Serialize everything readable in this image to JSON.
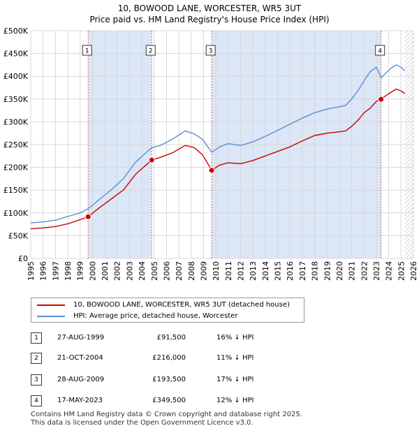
{
  "title_line1": "10, BOWOOD LANE, WORCESTER, WR5 3UT",
  "title_line2": "Price paid vs. HM Land Registry's House Price Index (HPI)",
  "legend": {
    "property_label": "10, BOWOOD LANE, WORCESTER, WR5 3UT (detached house)",
    "hpi_label": "HPI: Average price, detached house, Worcester"
  },
  "colors": {
    "property": "#cc0000",
    "hpi": "#5b8fd6",
    "shade": "#dbe6f6",
    "grid": "#d8d8d8",
    "vline": "#e06060"
  },
  "transactions": [
    {
      "num": "1",
      "date": "27-AUG-1999",
      "price": "£91,500",
      "diff": "16% ↓ HPI"
    },
    {
      "num": "2",
      "date": "21-OCT-2004",
      "price": "£216,000",
      "diff": "11% ↓ HPI"
    },
    {
      "num": "3",
      "date": "28-AUG-2009",
      "price": "£193,500",
      "diff": "17% ↓ HPI"
    },
    {
      "num": "4",
      "date": "17-MAY-2023",
      "price": "£349,500",
      "diff": "12% ↓ HPI"
    }
  ],
  "footer": {
    "line1": "Contains HM Land Registry data © Crown copyright and database right 2025.",
    "line2": "This data is licensed under the Open Government Licence v3.0."
  },
  "chart_data": {
    "type": "line",
    "title": "10, BOWOOD LANE, WORCESTER, WR5 3UT",
    "subtitle": "Price paid vs. HM Land Registry's House Price Index (HPI)",
    "xlabel": "",
    "ylabel": "",
    "xlim": [
      1995,
      2026
    ],
    "ylim": [
      0,
      500000
    ],
    "x_ticks": [
      1995,
      1996,
      1997,
      1998,
      1999,
      2000,
      2001,
      2002,
      2003,
      2004,
      2005,
      2006,
      2007,
      2008,
      2009,
      2010,
      2011,
      2012,
      2013,
      2014,
      2015,
      2016,
      2017,
      2018,
      2019,
      2020,
      2021,
      2022,
      2023,
      2024,
      2025,
      2026
    ],
    "y_ticks": [
      {
        "value": 0,
        "label": "£0"
      },
      {
        "value": 50000,
        "label": "£50K"
      },
      {
        "value": 100000,
        "label": "£100K"
      },
      {
        "value": 150000,
        "label": "£150K"
      },
      {
        "value": 200000,
        "label": "£200K"
      },
      {
        "value": 250000,
        "label": "£250K"
      },
      {
        "value": 300000,
        "label": "£300K"
      },
      {
        "value": 350000,
        "label": "£350K"
      },
      {
        "value": 400000,
        "label": "£400K"
      },
      {
        "value": 450000,
        "label": "£450K"
      },
      {
        "value": 500000,
        "label": "£500K"
      }
    ],
    "grid": true,
    "future_hatch_from": 2025.3,
    "shaded_periods": [
      [
        1999.65,
        2004.8
      ],
      [
        2009.66,
        2023.38
      ]
    ],
    "sales": [
      {
        "num": "1",
        "x": 1999.65,
        "y": 91500
      },
      {
        "num": "2",
        "x": 2004.8,
        "y": 216000
      },
      {
        "num": "3",
        "x": 2009.66,
        "y": 193500
      },
      {
        "num": "4",
        "x": 2023.38,
        "y": 349500
      }
    ],
    "series": [
      {
        "name": "10, BOWOOD LANE, WORCESTER, WR5 3UT (detached house)",
        "x": [
          1995.0,
          1996.0,
          1997.0,
          1998.0,
          1999.0,
          1999.65,
          2000.5,
          2001.5,
          2002.5,
          2003.5,
          2004.8,
          2005.5,
          2006.5,
          2007.5,
          2008.2,
          2008.9,
          2009.66,
          2010.3,
          2011.0,
          2012.0,
          2013.0,
          2014.0,
          2015.0,
          2016.0,
          2017.0,
          2018.0,
          2019.0,
          2020.0,
          2020.5,
          2021.0,
          2021.5,
          2022.0,
          2022.5,
          2023.0,
          2023.38,
          2023.8,
          2024.2,
          2024.6,
          2025.0,
          2025.3
        ],
        "y": [
          65000,
          67000,
          70000,
          76000,
          85000,
          91500,
          110000,
          130000,
          150000,
          185000,
          216000,
          222000,
          232000,
          248000,
          244000,
          228000,
          193500,
          205000,
          210000,
          208000,
          215000,
          225000,
          235000,
          245000,
          258000,
          270000,
          275000,
          278000,
          280000,
          290000,
          303000,
          320000,
          330000,
          345000,
          349500,
          358000,
          365000,
          372000,
          368000,
          362000
        ]
      },
      {
        "name": "HPI: Average price, detached house, Worcester",
        "x": [
          1995.0,
          1996.0,
          1997.0,
          1998.0,
          1999.0,
          1999.65,
          2000.5,
          2001.5,
          2002.5,
          2003.5,
          2004.8,
          2005.5,
          2006.5,
          2007.5,
          2008.2,
          2008.9,
          2009.66,
          2010.3,
          2011.0,
          2012.0,
          2013.0,
          2014.0,
          2015.0,
          2016.0,
          2017.0,
          2018.0,
          2019.0,
          2020.0,
          2020.5,
          2021.0,
          2021.5,
          2022.0,
          2022.5,
          2023.0,
          2023.38,
          2023.8,
          2024.2,
          2024.6,
          2025.0,
          2025.3
        ],
        "y": [
          78000,
          80000,
          84000,
          92000,
          100000,
          109000,
          128000,
          150000,
          175000,
          212000,
          243000,
          248000,
          262000,
          280000,
          274000,
          262000,
          233000,
          245000,
          252000,
          248000,
          256000,
          268000,
          281000,
          295000,
          308000,
          320000,
          328000,
          333000,
          336000,
          350000,
          368000,
          390000,
          410000,
          420000,
          397000,
          408000,
          418000,
          425000,
          420000,
          412000
        ]
      }
    ]
  }
}
